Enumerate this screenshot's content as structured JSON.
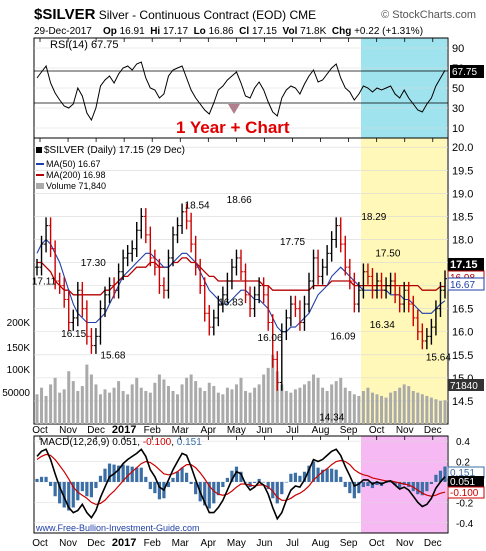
{
  "header": {
    "symbol": "$SILVER",
    "description": "Silver - Continuous Contract (EOD)",
    "exchange": "CME",
    "brand": "© StockCharts.com",
    "date": "29-Dec-2017",
    "open_label": "Op",
    "open": "16.91",
    "high_label": "Hi",
    "high": "17.17",
    "low_label": "Lo",
    "low": "16.86",
    "close_label": "Cl",
    "close": "17.15",
    "volume_label": "Vol",
    "volume": "71.8K",
    "change_label": "Chg",
    "change": "+0.22 (+1.31%)"
  },
  "rsi_panel": {
    "label": "RSI(14) 67.75",
    "value_badge": "67.75",
    "ticks": [
      "90",
      "70",
      "50",
      "30",
      "10"
    ]
  },
  "price_panel": {
    "legend": {
      "main": "$SILVER (Daily) 17.15 (29 Dec)",
      "ma50": "MA(50) 16.67",
      "ma200": "MA(200) 16.98",
      "volume": "Volume 71,840"
    },
    "annotation": "1 Year + Chart",
    "badges": [
      "17.15",
      "16.98",
      "16.67"
    ],
    "volume_badge": "71840",
    "volume_ticks": [
      "200K",
      "150K",
      "100K",
      "50000"
    ],
    "watermark": "www.Free-Bullion-Investment-Guide.com"
  },
  "macd_panel": {
    "label_prefix": "MACD(12,26,9)",
    "macd": "0.051",
    "signal": "-0.100",
    "histogram": "0.151",
    "badges": [
      "0.151",
      "0.051",
      "-0.100"
    ],
    "ticks": [
      "0.4",
      "0.2",
      "0.0",
      "-0.2",
      "-0.4"
    ]
  },
  "colors": {
    "rsi_line": "#000000",
    "price_up": "#000000",
    "price_down": "#cc0000",
    "ma50": "#1f3fa8",
    "ma200": "#b30000",
    "volume": "#aaaaaa",
    "macd_line": "#000000",
    "signal_line": "#cc0000",
    "histogram": "#3a6ea5",
    "rsi_highlight": "#9fe3ee",
    "price_highlight": "#fff8b8",
    "macd_highlight": "#f7b9f3",
    "annotation": "#e00000"
  },
  "chart_data": {
    "type": "line",
    "x_ticks": [
      "Oct",
      "Nov",
      "Dec",
      "2017",
      "Feb",
      "Mar",
      "Apr",
      "May",
      "Jun",
      "Jul",
      "Aug",
      "Sep",
      "Oct",
      "Nov",
      "Dec"
    ],
    "price_axis": {
      "ylim": [
        14.0,
        20.2
      ],
      "ticks": [
        "20.0",
        "19.5",
        "19.0",
        "18.5",
        "18.0",
        "17.5",
        "17.0",
        "16.5",
        "16.0",
        "15.5",
        "15.0",
        "14.5"
      ]
    },
    "price_labels": [
      {
        "text": "17.11",
        "month": 0.0,
        "value": 17.11
      },
      {
        "text": "16.15",
        "month": 1.2,
        "value": 16.15
      },
      {
        "text": "15.68",
        "month": 2.6,
        "value": 15.68
      },
      {
        "text": "17.30",
        "month": 1.9,
        "value": 17.3
      },
      {
        "text": "18.54",
        "month": 5.6,
        "value": 18.54
      },
      {
        "text": "16.83",
        "month": 6.8,
        "value": 16.83
      },
      {
        "text": "18.66",
        "month": 7.1,
        "value": 18.66
      },
      {
        "text": "16.06",
        "month": 8.2,
        "value": 16.06
      },
      {
        "text": "17.75",
        "month": 9.0,
        "value": 17.75
      },
      {
        "text": "14.34",
        "month": 10.4,
        "value": 14.34
      },
      {
        "text": "16.09",
        "month": 10.8,
        "value": 16.09
      },
      {
        "text": "18.29",
        "month": 11.9,
        "value": 18.29
      },
      {
        "text": "16.34",
        "month": 12.2,
        "value": 16.34
      },
      {
        "text": "17.50",
        "month": 12.4,
        "value": 17.5
      },
      {
        "text": "15.64",
        "month": 14.2,
        "value": 15.64
      }
    ],
    "price_close": [
      17.4,
      17.9,
      18.3,
      17.8,
      17.1,
      17.0,
      16.7,
      16.2,
      16.3,
      16.9,
      16.5,
      15.9,
      15.7,
      15.9,
      16.5,
      16.8,
      17.0,
      16.9,
      17.3,
      17.6,
      17.7,
      17.8,
      18.2,
      18.5,
      18.1,
      17.6,
      17.4,
      17.0,
      16.9,
      17.6,
      18.1,
      18.3,
      18.6,
      18.4,
      17.9,
      17.4,
      17.0,
      16.4,
      16.1,
      16.3,
      16.6,
      16.8,
      17.1,
      17.4,
      17.6,
      17.3,
      16.8,
      16.5,
      16.8,
      17.0,
      16.8,
      16.2,
      15.4,
      14.9,
      16.0,
      16.3,
      16.6,
      16.5,
      16.2,
      16.6,
      17.1,
      17.6,
      17.2,
      17.4,
      17.7,
      18.0,
      18.3,
      17.9,
      17.4,
      17.1,
      16.6,
      16.9,
      17.3,
      17.2,
      16.9,
      17.1,
      16.9,
      17.0,
      17.1,
      16.8,
      16.6,
      16.9,
      16.6,
      16.3,
      16.0,
      15.8,
      15.9,
      16.1,
      16.5,
      16.9,
      17.15
    ],
    "ma50": [
      17.7,
      17.9,
      18.0,
      17.9,
      17.7,
      17.5,
      17.2,
      16.9,
      16.6,
      16.4,
      16.3,
      16.2,
      16.2,
      16.2,
      16.3,
      16.4,
      16.6,
      16.8,
      17.0,
      17.2,
      17.3,
      17.4,
      17.5,
      17.6,
      17.7,
      17.7,
      17.6,
      17.5,
      17.4,
      17.4,
      17.5,
      17.6,
      17.7,
      17.7,
      17.6,
      17.5,
      17.3,
      17.1,
      16.9,
      16.8,
      16.7,
      16.6,
      16.6,
      16.7,
      16.8,
      16.9,
      16.9,
      16.8,
      16.7,
      16.7,
      16.6,
      16.5,
      16.3,
      16.1,
      16.0,
      16.0,
      16.1,
      16.1,
      16.2,
      16.3,
      16.4,
      16.6,
      16.8,
      16.9,
      17.0,
      17.2,
      17.3,
      17.4,
      17.3,
      17.2,
      17.1,
      17.0,
      16.9,
      16.9,
      16.9,
      16.9,
      16.9,
      16.9,
      16.8,
      16.8,
      16.8,
      16.7,
      16.7,
      16.6,
      16.5,
      16.4,
      16.4,
      16.4,
      16.5,
      16.6,
      16.67
    ],
    "ma200": [
      17.5,
      17.5,
      17.4,
      17.3,
      17.1,
      17.0,
      16.9,
      16.9,
      16.8,
      16.8,
      16.8,
      16.8,
      16.8,
      16.8,
      16.8,
      16.9,
      16.9,
      17.0,
      17.1,
      17.2,
      17.2,
      17.3,
      17.4,
      17.4,
      17.4,
      17.5,
      17.5,
      17.4,
      17.4,
      17.4,
      17.5,
      17.5,
      17.6,
      17.6,
      17.5,
      17.5,
      17.4,
      17.3,
      17.2,
      17.2,
      17.1,
      17.1,
      17.1,
      17.1,
      17.1,
      17.1,
      17.1,
      17.1,
      17.1,
      17.1,
      17.0,
      17.0,
      16.9,
      16.9,
      16.9,
      16.9,
      16.9,
      16.9,
      16.9,
      16.9,
      16.9,
      17.0,
      17.0,
      17.0,
      17.0,
      17.1,
      17.1,
      17.1,
      17.1,
      17.1,
      17.0,
      17.0,
      17.0,
      17.0,
      17.0,
      17.0,
      17.0,
      17.0,
      17.0,
      17.0,
      17.0,
      17.0,
      17.0,
      17.0,
      17.0,
      16.9,
      16.9,
      16.9,
      16.9,
      16.98,
      16.98
    ],
    "volume": [
      90,
      110,
      85,
      120,
      140,
      95,
      105,
      160,
      130,
      100,
      115,
      180,
      150,
      120,
      90,
      105,
      95,
      110,
      130,
      100,
      90,
      120,
      140,
      110,
      100,
      95,
      125,
      150,
      135,
      115,
      100,
      90,
      120,
      140,
      150,
      130,
      110,
      100,
      125,
      115,
      95,
      90,
      110,
      105,
      120,
      140,
      100,
      95,
      110,
      120,
      150,
      170,
      210,
      160,
      120,
      100,
      95,
      105,
      110,
      120,
      130,
      150,
      140,
      110,
      100,
      120,
      130,
      140,
      110,
      100,
      90,
      85,
      100,
      110,
      95,
      90,
      85,
      80,
      95,
      100,
      110,
      120,
      115,
      100,
      95,
      90,
      85,
      80,
      75,
      70,
      72
    ],
    "rsi": {
      "ylim": [
        0,
        100
      ],
      "values": [
        60,
        66,
        72,
        55,
        45,
        38,
        32,
        30,
        34,
        50,
        42,
        25,
        18,
        30,
        52,
        58,
        62,
        55,
        64,
        70,
        72,
        68,
        74,
        76,
        60,
        50,
        48,
        40,
        44,
        62,
        68,
        70,
        72,
        60,
        48,
        40,
        34,
        28,
        24,
        35,
        48,
        52,
        58,
        62,
        66,
        55,
        42,
        40,
        50,
        56,
        48,
        36,
        26,
        22,
        40,
        48,
        52,
        50,
        44,
        54,
        62,
        68,
        56,
        58,
        64,
        70,
        74,
        60,
        50,
        46,
        38,
        44,
        52,
        50,
        46,
        50,
        48,
        50,
        52,
        44,
        40,
        48,
        40,
        34,
        28,
        26,
        34,
        40,
        52,
        60,
        67.75
      ]
    },
    "macd": {
      "ylim": [
        -0.5,
        0.45
      ],
      "macd": [
        0.25,
        0.3,
        0.32,
        0.22,
        0.08,
        -0.05,
        -0.15,
        -0.25,
        -0.3,
        -0.28,
        -0.22,
        -0.3,
        -0.35,
        -0.28,
        -0.15,
        -0.05,
        0.05,
        0.08,
        0.12,
        0.18,
        0.22,
        0.25,
        0.28,
        0.32,
        0.25,
        0.12,
        0.05,
        -0.05,
        -0.08,
        0.02,
        0.12,
        0.2,
        0.28,
        0.26,
        0.15,
        0.02,
        -0.1,
        -0.2,
        -0.3,
        -0.3,
        -0.25,
        -0.18,
        -0.08,
        0.02,
        0.1,
        0.08,
        -0.02,
        -0.08,
        -0.05,
        0.0,
        -0.03,
        -0.12,
        -0.25,
        -0.36,
        -0.3,
        -0.18,
        -0.08,
        -0.04,
        -0.05,
        0.02,
        0.12,
        0.22,
        0.2,
        0.22,
        0.26,
        0.3,
        0.32,
        0.26,
        0.15,
        0.06,
        -0.04,
        -0.02,
        0.02,
        0.02,
        -0.02,
        0.0,
        -0.02,
        0.0,
        0.01,
        -0.03,
        -0.07,
        -0.05,
        -0.08,
        -0.14,
        -0.2,
        -0.24,
        -0.22,
        -0.16,
        -0.06,
        0.0,
        0.051
      ],
      "signal": [
        0.22,
        0.25,
        0.27,
        0.26,
        0.22,
        0.16,
        0.1,
        0.03,
        -0.05,
        -0.1,
        -0.13,
        -0.16,
        -0.2,
        -0.22,
        -0.21,
        -0.18,
        -0.13,
        -0.09,
        -0.04,
        0.01,
        0.06,
        0.1,
        0.14,
        0.18,
        0.2,
        0.19,
        0.16,
        0.12,
        0.08,
        0.07,
        0.08,
        0.1,
        0.14,
        0.17,
        0.17,
        0.14,
        0.09,
        0.03,
        -0.04,
        -0.09,
        -0.12,
        -0.13,
        -0.12,
        -0.09,
        -0.05,
        -0.02,
        -0.02,
        -0.03,
        -0.04,
        -0.03,
        -0.03,
        -0.05,
        -0.09,
        -0.15,
        -0.18,
        -0.18,
        -0.16,
        -0.13,
        -0.11,
        -0.08,
        -0.04,
        0.02,
        0.06,
        0.1,
        0.13,
        0.17,
        0.2,
        0.21,
        0.2,
        0.17,
        0.12,
        0.09,
        0.07,
        0.06,
        0.04,
        0.03,
        0.02,
        0.01,
        0.01,
        0.0,
        -0.01,
        -0.02,
        -0.03,
        -0.05,
        -0.08,
        -0.11,
        -0.13,
        -0.14,
        -0.13,
        -0.11,
        -0.1
      ]
    }
  }
}
